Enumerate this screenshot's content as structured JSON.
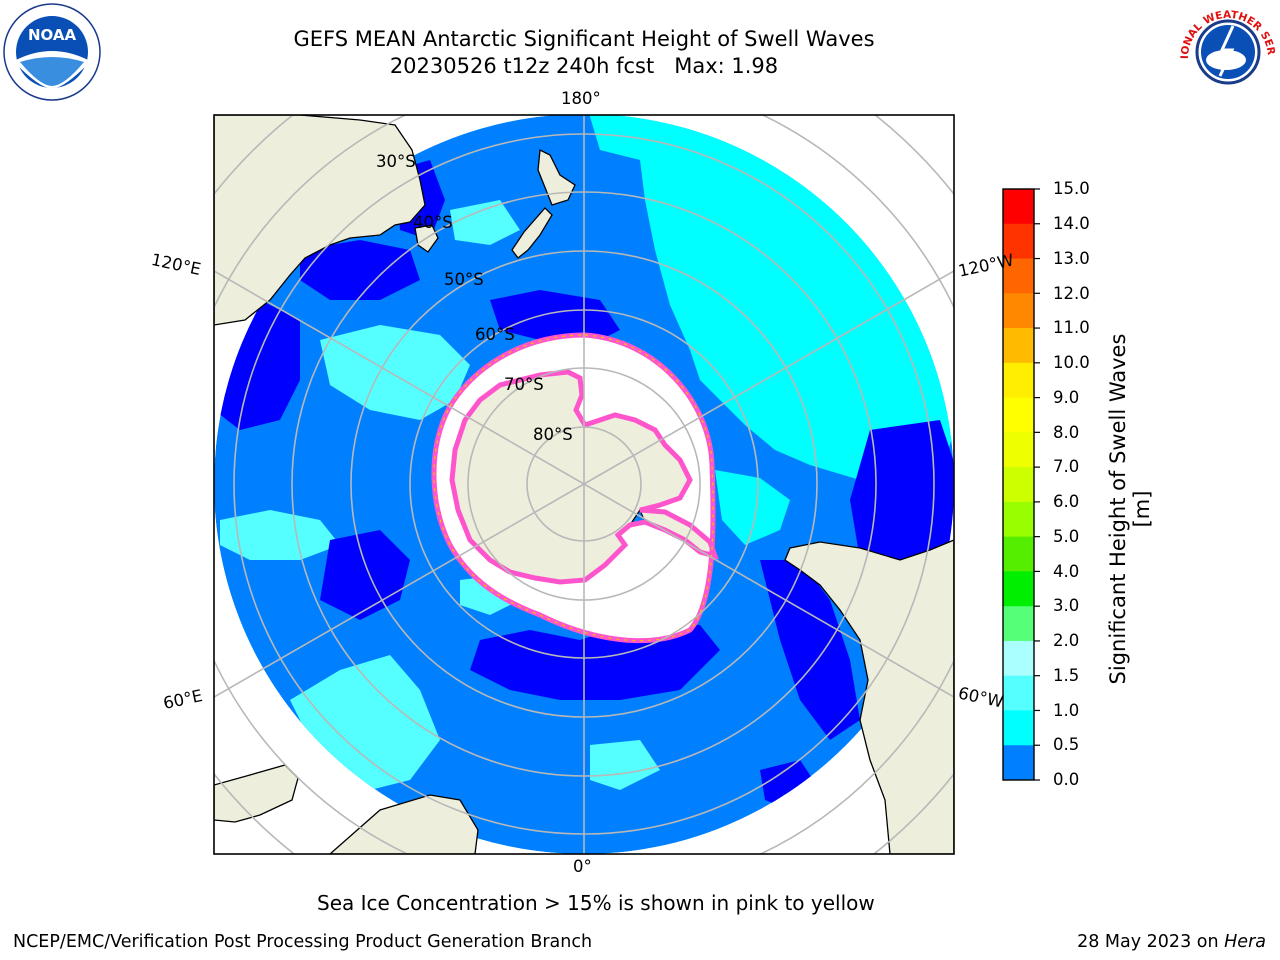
{
  "title": "GEFS MEAN Antarctic Significant Height of Swell Waves",
  "subtitle": "20230526 t12z 240h fcst   Max: 1.98",
  "map": {
    "meridian_labels": [
      "180°",
      "120°E",
      "120°W",
      "60°E",
      "60°W",
      "0°"
    ],
    "parallel_labels": [
      "30°S",
      "40°S",
      "50°S",
      "60°S",
      "70°S",
      "80°S"
    ],
    "colors": {
      "land": "#eeeedd",
      "ice_interior": "#ffffff",
      "ice_edge": "#ff55cc",
      "wave_0_0.5": "#0000ff",
      "wave_0.5_1.0": "#0080ff",
      "wave_1.0_1.5": "#00ffff",
      "wave_1.5_2.0": "#55ffff",
      "grid": "#b8b8b8"
    }
  },
  "colorbar": {
    "label": "Significant Height of Swell Waves [m]",
    "ticks": [
      "15.0",
      "14.0",
      "13.0",
      "12.0",
      "11.0",
      "10.0",
      "9.0",
      "8.0",
      "7.0",
      "6.0",
      "5.0",
      "4.0",
      "3.0",
      "2.0",
      "1.5",
      "1.0",
      "0.5",
      "0.0"
    ],
    "colors_top_to_bottom": [
      "#ff0000",
      "#ff3300",
      "#ff6600",
      "#ff8800",
      "#ffbb00",
      "#ffee00",
      "#ffff00",
      "#eeff00",
      "#ccff00",
      "#99ff00",
      "#55ee00",
      "#00ee00",
      "#55ff77",
      "#aaffff",
      "#55ffff",
      "#00ffff",
      "#0080ff",
      "#0000ff"
    ]
  },
  "caption": "Sea Ice Concentration > 15% is shown in pink to yellow",
  "footer": {
    "left": "NCEP/EMC/Verification Post Processing Product Generation Branch",
    "right_prefix": "28 May 2023 on ",
    "right_host": "Hera"
  },
  "logos": {
    "left_text": "NOAA",
    "right_text": "NATIONAL WEATHER SERVICE"
  }
}
